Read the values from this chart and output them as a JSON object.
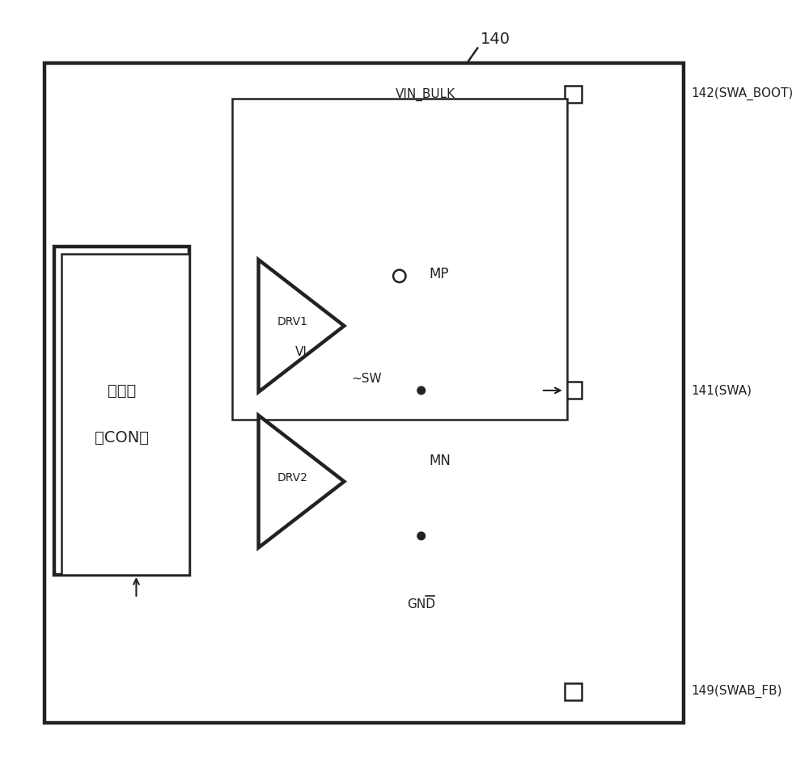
{
  "bg_color": "#ffffff",
  "lc": "#222222",
  "lw1": 1.8,
  "lw2": 3.2,
  "fs_main": 12,
  "fs_small": 11,
  "fs_large": 14,
  "label_140": "140",
  "label_142": "142(SWA_BOOT)",
  "label_141": "141(SWA)",
  "label_149": "149(SWAB_FB)",
  "label_mp": "MP",
  "label_mn": "MN",
  "label_drv1": "DRV1",
  "label_drv2": "DRV2",
  "label_vin_bulk": "VIN_BULK",
  "label_vi": "VI",
  "label_sw": "SW",
  "label_gnd": "GND",
  "label_con1": "控制器",
  "label_con2": "（CON）",
  "tilde": "~"
}
